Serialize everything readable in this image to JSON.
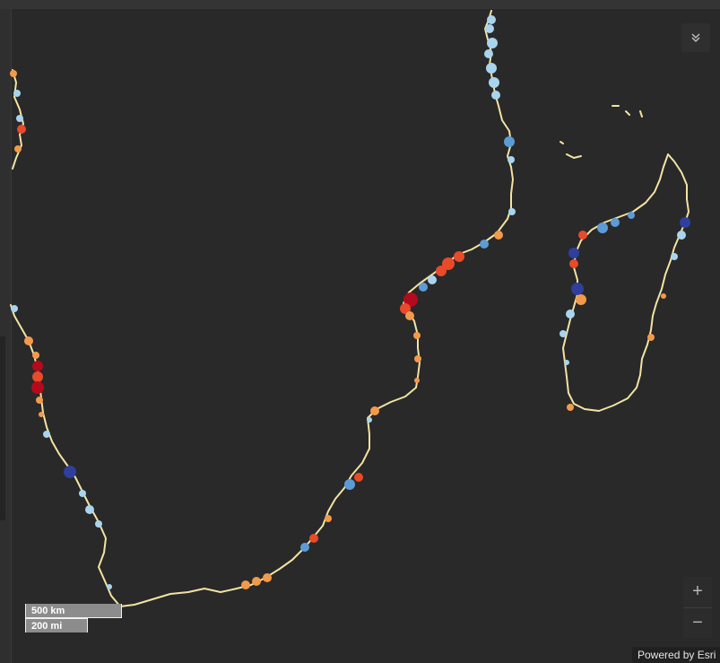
{
  "map": {
    "basemap": "dark-gray",
    "coastline_color": "#f3e3a3",
    "class_colors": {
      "very_high": "#b50a1e",
      "high": "#e84a2a",
      "medium_high": "#f39a4a",
      "medium": "#f8d48a",
      "medium_low": "#a9d4ee",
      "low": "#5d9bd6",
      "very_low": "#2f3f9e"
    }
  },
  "controls": {
    "collapse_icon": "chevron-double-down-icon",
    "zoom_in_label": "+",
    "zoom_out_label": "−"
  },
  "scalebar": {
    "metric_label": "500 km",
    "imperial_label": "200 mi"
  },
  "attribution": {
    "text": "Powered by Esri"
  }
}
